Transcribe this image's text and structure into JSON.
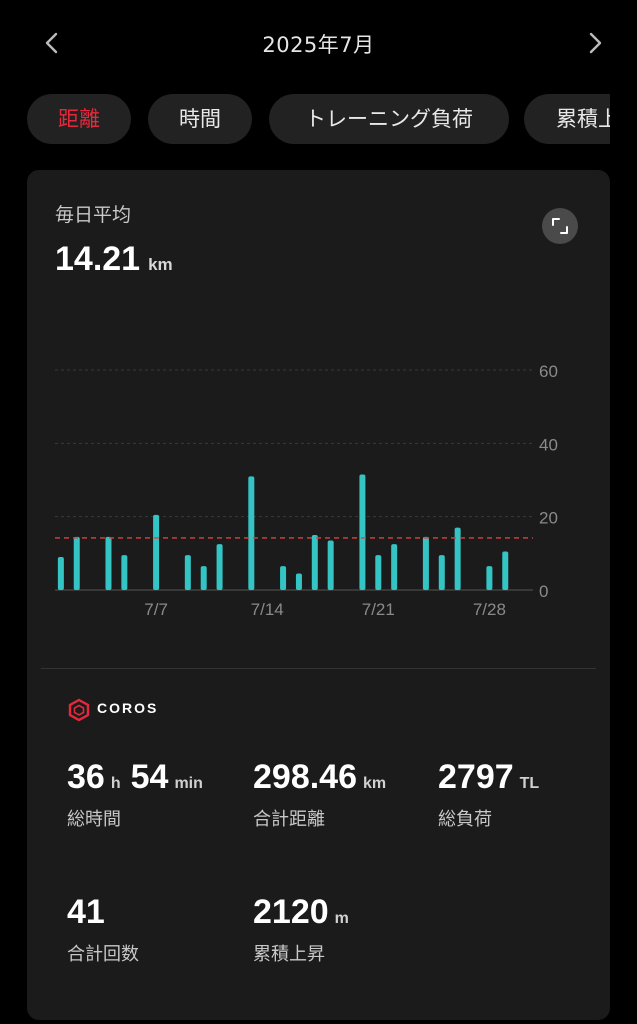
{
  "header": {
    "title": "2025年7月",
    "prev_icon": "chevron-left-icon",
    "next_icon": "chevron-right-icon"
  },
  "tabs": [
    {
      "label": "距離",
      "active": true
    },
    {
      "label": "時間",
      "active": false
    },
    {
      "label": "トレーニング負荷",
      "active": false
    },
    {
      "label": "累積上昇",
      "active": false
    }
  ],
  "summary": {
    "avg_label": "毎日平均",
    "avg_value": "14.21",
    "avg_unit": "km",
    "expand_icon": "expand-icon"
  },
  "colors": {
    "accent": "#e5283b",
    "bar": "#35c4c4",
    "average_line": "#e0403c",
    "card": "#1b1b1b",
    "tab_bg": "#222222"
  },
  "chart_data": {
    "type": "bar",
    "x": [
      1,
      2,
      4,
      5,
      7,
      9,
      10,
      11,
      13,
      15,
      16,
      17,
      18,
      20,
      21,
      22,
      24,
      25,
      26,
      28,
      29
    ],
    "values": [
      9,
      14.5,
      14.5,
      9.5,
      20.5,
      9.5,
      6.5,
      12.5,
      31,
      6.5,
      4.5,
      15,
      13.5,
      31.5,
      9.5,
      12.5,
      14.5,
      9.5,
      17,
      6.5,
      10.5
    ],
    "xticks": [
      7,
      14,
      21,
      28
    ],
    "xtick_labels": [
      "7/7",
      "7/14",
      "7/21",
      "7/28"
    ],
    "xlim": [
      0,
      31
    ],
    "yticks": [
      0,
      20,
      40,
      60
    ],
    "ytick_labels": [
      "0",
      "20",
      "40",
      "60"
    ],
    "ylim": [
      0,
      60
    ],
    "average": 14.21,
    "grid": true,
    "title": "",
    "xlabel": "",
    "ylabel": ""
  },
  "brand": {
    "name": "COROS",
    "icon": "coros-logo-icon"
  },
  "stats": [
    {
      "parts": [
        {
          "value": "36",
          "unit": "h"
        },
        {
          "value": "54",
          "unit": "min"
        }
      ],
      "label": "総時間"
    },
    {
      "parts": [
        {
          "value": "298.46",
          "unit": "km"
        }
      ],
      "label": "合計距離"
    },
    {
      "parts": [
        {
          "value": "2797",
          "unit": "TL"
        }
      ],
      "label": "総負荷"
    },
    {
      "parts": [
        {
          "value": "41",
          "unit": ""
        }
      ],
      "label": "合計回数"
    },
    {
      "parts": [
        {
          "value": "2120",
          "unit": "m"
        }
      ],
      "label": "累積上昇"
    }
  ]
}
